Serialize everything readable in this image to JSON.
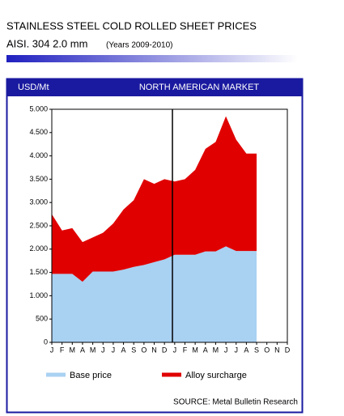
{
  "chart_data": {
    "type": "stacked_area",
    "title": "STAINLESS STEEL COLD ROLLED  SHEET PRICES",
    "subtitle": "AISI. 304 2.0 mm",
    "subtitle_note": "(Years 2009-2010)",
    "y_axis_label": "USD/Mt",
    "panel_title": "NORTH AMERICAN MARKET",
    "source": "SOURCE: Metal Bulletin Research",
    "categories": [
      "J",
      "F",
      "M",
      "A",
      "M",
      "J",
      "J",
      "A",
      "S",
      "O",
      "N",
      "D",
      "J",
      "F",
      "M",
      "A",
      "M",
      "J",
      "J",
      "A",
      "S",
      "O",
      "N",
      "D"
    ],
    "series": [
      {
        "name": "Base price",
        "color": "#a9d1f2",
        "values": [
          1470,
          1470,
          1470,
          1300,
          1520,
          1520,
          1520,
          1560,
          1620,
          1660,
          1720,
          1780,
          1880,
          1880,
          1880,
          1950,
          1950,
          2060,
          1960,
          1960,
          1960,
          null,
          null,
          null
        ]
      },
      {
        "name": "Alloy surcharge",
        "color": "#e00000",
        "values": [
          1280,
          930,
          980,
          850,
          730,
          830,
          1030,
          1290,
          1430,
          1840,
          1680,
          1720,
          1570,
          1620,
          1820,
          2200,
          2350,
          2790,
          2390,
          2090,
          2090,
          null,
          null,
          null
        ]
      }
    ],
    "ylim": [
      0,
      5000
    ],
    "yticks": [
      0,
      500,
      {
        "value": 1000,
        "label": "1.000"
      },
      {
        "value": 1500,
        "label": "1.500"
      },
      {
        "value": 2000,
        "label": "2.000"
      },
      {
        "value": 2500,
        "label": "2.500"
      },
      {
        "value": 3000,
        "label": "3.000"
      },
      {
        "value": 3500,
        "label": "3.500"
      },
      {
        "value": 4000,
        "label": "4.000"
      },
      {
        "value": 4500,
        "label": "4.500"
      },
      {
        "value": 5000,
        "label": "5.000"
      }
    ]
  }
}
